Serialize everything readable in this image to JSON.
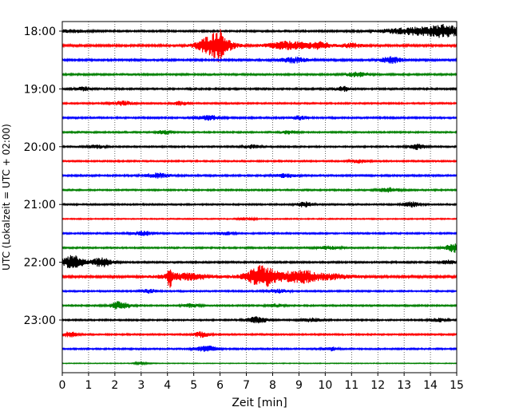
{
  "chart_data": {
    "type": "line",
    "title": "",
    "xlabel": "Zeit  [min]",
    "ylabel": "UTC (Lokalzeit = UTC + 02:00)",
    "xlim": [
      0,
      15
    ],
    "x_ticks": [
      "0",
      "1",
      "2",
      "3",
      "4",
      "5",
      "6",
      "7",
      "8",
      "9",
      "10",
      "11",
      "12",
      "13",
      "14",
      "15"
    ],
    "grid": "vertical dotted at each minute",
    "y_tick_labels": [
      {
        "trace_index": 0,
        "label": "18:00"
      },
      {
        "trace_index": 4,
        "label": "19:00"
      },
      {
        "trace_index": 8,
        "label": "20:00"
      },
      {
        "trace_index": 12,
        "label": "21:00"
      },
      {
        "trace_index": 16,
        "label": "22:00"
      },
      {
        "trace_index": 20,
        "label": "23:00"
      }
    ],
    "colors": [
      "#000000",
      "#ff0000",
      "#0000ff",
      "#008000"
    ],
    "traces": [
      {
        "start": "18:00",
        "color": "#000000",
        "noise": 0.18,
        "events": [
          [
            0.4,
            0.6,
            0.3
          ],
          [
            13.6,
            1.4,
            0.9
          ],
          [
            14.6,
            0.5,
            1.0
          ]
        ]
      },
      {
        "start": "18:15",
        "color": "#ff0000",
        "noise": 0.22,
        "events": [
          [
            5.8,
            0.6,
            2.6
          ],
          [
            6.0,
            0.2,
            1.4
          ],
          [
            8.6,
            0.8,
            0.9
          ],
          [
            9.8,
            0.4,
            0.7
          ],
          [
            11.0,
            0.4,
            0.5
          ]
        ]
      },
      {
        "start": "18:30",
        "color": "#0000ff",
        "noise": 0.2,
        "events": [
          [
            8.8,
            0.5,
            0.6
          ],
          [
            12.5,
            0.4,
            0.7
          ]
        ]
      },
      {
        "start": "18:45",
        "color": "#008000",
        "noise": 0.18,
        "events": [
          [
            11.2,
            0.4,
            0.5
          ]
        ]
      },
      {
        "start": "19:00",
        "color": "#000000",
        "noise": 0.18,
        "events": [
          [
            0.8,
            0.3,
            0.4
          ],
          [
            10.7,
            0.3,
            0.5
          ]
        ]
      },
      {
        "start": "19:15",
        "color": "#ff0000",
        "noise": 0.16,
        "events": [
          [
            2.3,
            0.4,
            0.5
          ],
          [
            4.5,
            0.3,
            0.4
          ]
        ]
      },
      {
        "start": "19:30",
        "color": "#0000ff",
        "noise": 0.18,
        "events": [
          [
            5.6,
            0.4,
            0.5
          ],
          [
            9.0,
            0.3,
            0.4
          ]
        ]
      },
      {
        "start": "19:45",
        "color": "#008000",
        "noise": 0.16,
        "events": [
          [
            3.9,
            0.3,
            0.5
          ],
          [
            8.6,
            0.3,
            0.4
          ]
        ]
      },
      {
        "start": "20:00",
        "color": "#000000",
        "noise": 0.16,
        "events": [
          [
            1.3,
            0.3,
            0.4
          ],
          [
            7.2,
            0.3,
            0.4
          ],
          [
            13.5,
            0.3,
            0.6
          ]
        ]
      },
      {
        "start": "20:15",
        "color": "#ff0000",
        "noise": 0.16,
        "events": [
          [
            11.3,
            0.3,
            0.4
          ]
        ]
      },
      {
        "start": "20:30",
        "color": "#0000ff",
        "noise": 0.18,
        "events": [
          [
            3.6,
            0.5,
            0.5
          ],
          [
            8.5,
            0.4,
            0.4
          ]
        ]
      },
      {
        "start": "20:45",
        "color": "#008000",
        "noise": 0.16,
        "events": [
          [
            12.4,
            0.4,
            0.5
          ]
        ]
      },
      {
        "start": "21:00",
        "color": "#000000",
        "noise": 0.16,
        "events": [
          [
            9.2,
            0.3,
            0.6
          ],
          [
            13.3,
            0.3,
            0.6
          ]
        ]
      },
      {
        "start": "21:15",
        "color": "#ff0000",
        "noise": 0.12,
        "events": [
          [
            7.0,
            0.3,
            0.3
          ]
        ]
      },
      {
        "start": "21:30",
        "color": "#0000ff",
        "noise": 0.16,
        "events": [
          [
            3.1,
            0.4,
            0.5
          ],
          [
            6.2,
            0.3,
            0.3
          ]
        ]
      },
      {
        "start": "21:45",
        "color": "#008000",
        "noise": 0.16,
        "events": [
          [
            10.1,
            0.4,
            0.4
          ],
          [
            14.9,
            0.3,
            1.0
          ]
        ]
      },
      {
        "start": "22:00",
        "color": "#000000",
        "noise": 0.18,
        "events": [
          [
            0.4,
            0.4,
            1.6
          ],
          [
            1.5,
            0.4,
            1.0
          ],
          [
            14.7,
            0.3,
            0.4
          ]
        ]
      },
      {
        "start": "22:15",
        "color": "#ff0000",
        "noise": 0.24,
        "events": [
          [
            4.1,
            0.08,
            2.8
          ],
          [
            4.7,
            1.0,
            0.7
          ],
          [
            7.6,
            0.6,
            2.4
          ],
          [
            9.0,
            0.6,
            1.5
          ],
          [
            10.2,
            0.8,
            0.6
          ]
        ]
      },
      {
        "start": "22:30",
        "color": "#0000ff",
        "noise": 0.16,
        "events": [
          [
            3.3,
            0.3,
            0.4
          ],
          [
            8.2,
            0.4,
            0.4
          ]
        ]
      },
      {
        "start": "22:45",
        "color": "#008000",
        "noise": 0.16,
        "events": [
          [
            2.2,
            0.4,
            0.9
          ],
          [
            4.9,
            0.3,
            0.4
          ],
          [
            8.1,
            0.3,
            0.4
          ]
        ]
      },
      {
        "start": "23:00",
        "color": "#000000",
        "noise": 0.16,
        "events": [
          [
            7.4,
            0.4,
            0.7
          ],
          [
            9.5,
            0.4,
            0.4
          ],
          [
            14.3,
            0.3,
            0.4
          ]
        ]
      },
      {
        "start": "23:15",
        "color": "#ff0000",
        "noise": 0.16,
        "events": [
          [
            0.3,
            0.3,
            0.6
          ],
          [
            5.3,
            0.3,
            0.6
          ]
        ]
      },
      {
        "start": "23:30",
        "color": "#0000ff",
        "noise": 0.16,
        "events": [
          [
            5.5,
            0.4,
            0.7
          ],
          [
            10.2,
            0.3,
            0.4
          ]
        ]
      },
      {
        "start": "23:45",
        "color": "#008000",
        "noise": 0.08,
        "events": [
          [
            3.0,
            0.3,
            0.2
          ]
        ]
      }
    ]
  }
}
